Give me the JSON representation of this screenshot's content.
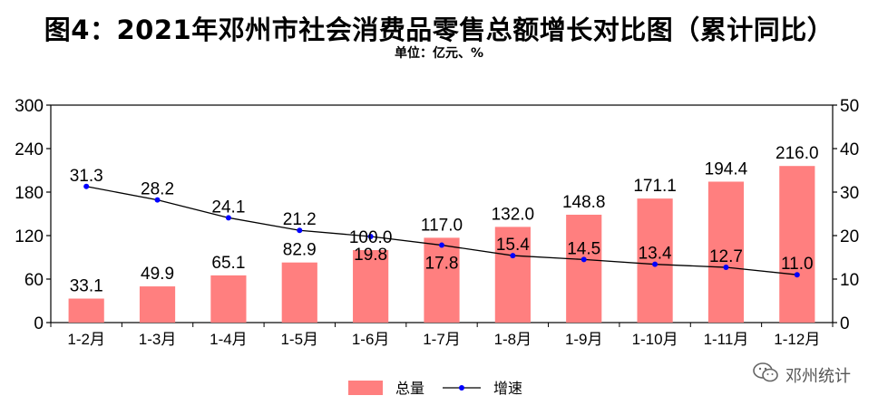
{
  "title": "图4：2021年邓州市社会消费品零售总额增长对比图（累计同比）",
  "unit": "单位：亿元、%",
  "watermark": "邓州统计",
  "colors": {
    "bar": "#FF7F7F",
    "line": "#000000",
    "marker": "#0000FF"
  },
  "chart_data": {
    "type": "bar+line",
    "categories": [
      "1-2月",
      "1-3月",
      "1-4月",
      "1-5月",
      "1-6月",
      "1-7月",
      "1-8月",
      "1-9月",
      "1-10月",
      "1-11月",
      "1-12月"
    ],
    "series": [
      {
        "name": "总量",
        "type": "bar",
        "axis": "left",
        "values": [
          33.1,
          49.9,
          65.1,
          82.9,
          100.0,
          117.0,
          132.0,
          148.8,
          171.1,
          194.4,
          216.0
        ],
        "labels": [
          "33.1",
          "49.9",
          "65.1",
          "82.9",
          "100.0",
          "117.0",
          "132.0",
          "148.8",
          "171.1",
          "194.4",
          "216.0"
        ]
      },
      {
        "name": "增速",
        "type": "line",
        "axis": "right",
        "values": [
          31.3,
          28.2,
          24.1,
          21.2,
          19.8,
          17.8,
          15.4,
          14.5,
          13.4,
          12.7,
          11.0
        ],
        "labels": [
          "31.3",
          "28.2",
          "24.1",
          "21.2",
          "19.8",
          "17.8",
          "15.4",
          "14.5",
          "13.4",
          "12.7",
          "11.0"
        ]
      }
    ],
    "y_left": {
      "ylim": [
        0,
        300
      ],
      "ticks": [
        "0",
        "60",
        "120",
        "180",
        "240",
        "300"
      ]
    },
    "y_right": {
      "ylim": [
        0,
        50
      ],
      "ticks": [
        "0",
        "10",
        "20",
        "30",
        "40",
        "50"
      ]
    },
    "grid": false,
    "legend_position": "bottom"
  }
}
